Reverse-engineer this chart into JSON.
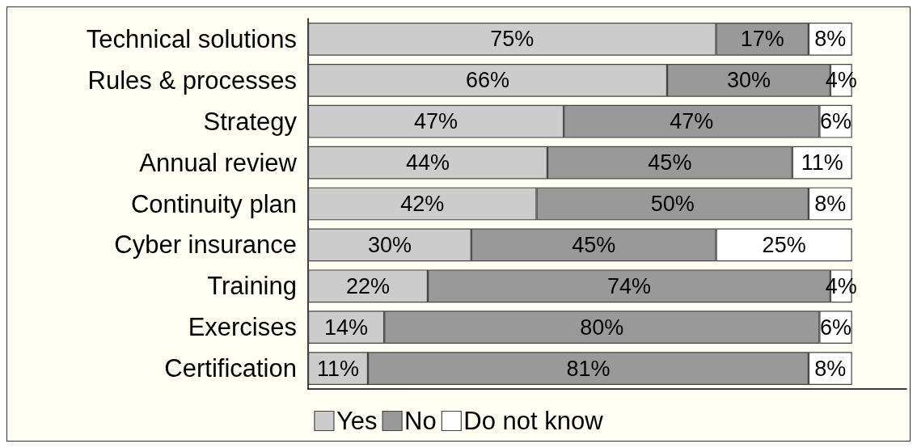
{
  "chart_data": {
    "type": "bar",
    "orientation": "horizontal",
    "stacked": true,
    "categories": [
      "Technical solutions",
      "Rules & processes",
      "Strategy",
      "Annual review",
      "Continuity plan",
      "Cyber insurance",
      "Training",
      "Exercises",
      "Certification"
    ],
    "series": [
      {
        "name": "Yes",
        "color": "#cccccc",
        "values": [
          75,
          66,
          47,
          44,
          42,
          30,
          22,
          14,
          11
        ],
        "value_labels": [
          "75%",
          "66%",
          "47%",
          "44%",
          "42%",
          "30%",
          "22%",
          "14%",
          "11%"
        ]
      },
      {
        "name": "No",
        "color": "#999999",
        "values": [
          17,
          30,
          47,
          45,
          50,
          45,
          74,
          80,
          81
        ],
        "value_labels": [
          "17%",
          "30%",
          "47%",
          "45%",
          "50%",
          "45%",
          "74%",
          "80%",
          "81%"
        ]
      },
      {
        "name": "Do not know",
        "color": "#ffffff",
        "values": [
          8,
          4,
          6,
          11,
          8,
          25,
          4,
          6,
          8
        ],
        "value_labels": [
          "8%",
          "4%",
          "6%",
          "11%",
          "8%",
          "25%",
          "4%",
          "6%",
          "8%"
        ]
      }
    ],
    "xlim": [
      0,
      110
    ],
    "tick_labels": "y",
    "grid": false,
    "legend": "bottom"
  }
}
